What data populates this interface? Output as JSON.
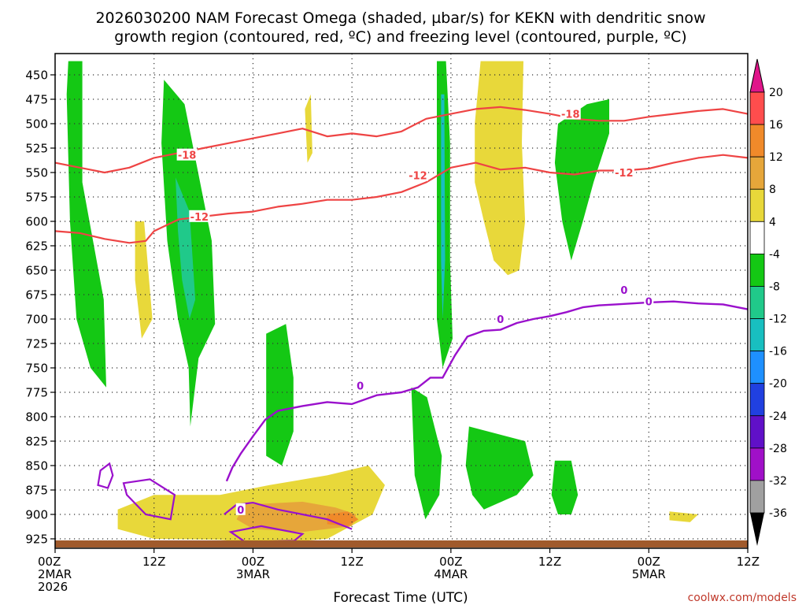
{
  "chart_data": {
    "type": "heatmap",
    "title_line1": "2026030200 NAM Forecast Omega (shaded, µbar/s) for KEKN with dendritic snow",
    "title_line2": "growth region (contoured, red, ºC) and freezing level (contoured, purple, ºC)",
    "xlabel": "Forecast Time (UTC)",
    "credit": "coolwx.com/models",
    "y_ticks": [
      "450",
      "475",
      "500",
      "525",
      "550",
      "575",
      "600",
      "625",
      "650",
      "675",
      "700",
      "725",
      "750",
      "775",
      "800",
      "825",
      "850",
      "875",
      "900",
      "925"
    ],
    "x_ticks": [
      {
        "hour": 0,
        "line1": "00Z",
        "line2": "2MAR",
        "line3": "2026"
      },
      {
        "hour": 12,
        "line1": "12Z",
        "line2": "",
        "line3": ""
      },
      {
        "hour": 24,
        "line1": "00Z",
        "line2": "3MAR",
        "line3": ""
      },
      {
        "hour": 36,
        "line1": "12Z",
        "line2": "",
        "line3": ""
      },
      {
        "hour": 48,
        "line1": "00Z",
        "line2": "4MAR",
        "line3": ""
      },
      {
        "hour": 60,
        "line1": "12Z",
        "line2": "",
        "line3": ""
      },
      {
        "hour": 72,
        "line1": "00Z",
        "line2": "5MAR",
        "line3": ""
      },
      {
        "hour": 84,
        "line1": "12Z",
        "line2": "",
        "line3": ""
      }
    ],
    "colorbar": {
      "labels": [
        "20",
        "16",
        "12",
        "8",
        "4",
        "-4",
        "-8",
        "-12",
        "-16",
        "-20",
        "-24",
        "-28",
        "-32",
        "-36"
      ],
      "colors": [
        "#ff4d4d",
        "#f08a2a",
        "#e6a63a",
        "#e8d83a",
        "#ffffff",
        "#14c814",
        "#20c98a",
        "#18bfc0",
        "#1e90ff",
        "#2040e0",
        "#6010c8",
        "#a010c8",
        "#a0a0a0"
      ],
      "top_arrow_color": "#e0158a",
      "bottom_arrow_color": "#000000"
    },
    "contour_labels": {
      "red": [
        "-18",
        "-12",
        "-12",
        "-18",
        "-12"
      ],
      "purple": [
        "0",
        "0",
        "0",
        "0",
        "0"
      ]
    },
    "shading_regions": [
      {
        "color": "#14c814",
        "polygon": [
          [
            1.6,
            436
          ],
          [
            3.3,
            436
          ],
          [
            3.3,
            560
          ],
          [
            5.9,
            680
          ],
          [
            6.2,
            770
          ],
          [
            4.3,
            750
          ],
          [
            2.6,
            700
          ],
          [
            1.8,
            600
          ],
          [
            1.4,
            470
          ]
        ]
      },
      {
        "color": "#14c814",
        "polygon": [
          [
            13.2,
            455
          ],
          [
            15.7,
            480
          ],
          [
            19,
            620
          ],
          [
            19.4,
            705
          ],
          [
            17.4,
            740
          ],
          [
            16.4,
            810
          ],
          [
            16.2,
            750
          ],
          [
            14.9,
            700
          ],
          [
            13.6,
            620
          ],
          [
            12.9,
            520
          ]
        ]
      },
      {
        "color": "#20c98a",
        "polygon": [
          [
            14.6,
            555
          ],
          [
            16.3,
            590
          ],
          [
            17,
            680
          ],
          [
            16.3,
            700
          ],
          [
            15.4,
            660
          ],
          [
            14.9,
            610
          ]
        ]
      },
      {
        "color": "#14c814",
        "polygon": [
          [
            25.6,
            715
          ],
          [
            28,
            705
          ],
          [
            28.9,
            760
          ],
          [
            28.9,
            815
          ],
          [
            27.5,
            850
          ],
          [
            25.6,
            840
          ],
          [
            25.6,
            790
          ]
        ]
      },
      {
        "color": "#14c814",
        "polygon": [
          [
            43.2,
            770
          ],
          [
            45.1,
            780
          ],
          [
            46.9,
            840
          ],
          [
            46.6,
            880
          ],
          [
            44.9,
            905
          ],
          [
            43.6,
            860
          ]
        ]
      },
      {
        "color": "#14c814",
        "polygon": [
          [
            46.3,
            436
          ],
          [
            47.4,
            436
          ],
          [
            47.9,
            520
          ],
          [
            47.9,
            640
          ],
          [
            48.2,
            720
          ],
          [
            47,
            750
          ],
          [
            46.3,
            700
          ],
          [
            46.3,
            600
          ]
        ]
      },
      {
        "color": "#18bfc0",
        "polygon": [
          [
            46.8,
            470
          ],
          [
            47.2,
            470
          ],
          [
            47.3,
            640
          ],
          [
            47,
            700
          ],
          [
            46.8,
            640
          ]
        ]
      },
      {
        "color": "#14c814",
        "polygon": [
          [
            50.2,
            810
          ],
          [
            57,
            825
          ],
          [
            58,
            860
          ],
          [
            56,
            880
          ],
          [
            52,
            895
          ],
          [
            50.6,
            880
          ],
          [
            49.8,
            850
          ]
        ]
      },
      {
        "color": "#14c814",
        "polygon": [
          [
            60.6,
            845
          ],
          [
            62.6,
            845
          ],
          [
            63.4,
            880
          ],
          [
            62.6,
            900
          ],
          [
            61,
            900
          ],
          [
            60.2,
            880
          ]
        ]
      },
      {
        "color": "#14c814",
        "polygon": [
          [
            61,
            500
          ],
          [
            64.5,
            480
          ],
          [
            67.2,
            475
          ],
          [
            67.2,
            510
          ],
          [
            65.3,
            560
          ],
          [
            64,
            600
          ],
          [
            62.6,
            640
          ],
          [
            61.5,
            600
          ],
          [
            60.6,
            540
          ]
        ]
      },
      {
        "color": "#e8d83a",
        "polygon": [
          [
            51.6,
            436
          ],
          [
            56.8,
            436
          ],
          [
            56.6,
            520
          ],
          [
            57,
            600
          ],
          [
            56.3,
            650
          ],
          [
            54.9,
            655
          ],
          [
            53.2,
            640
          ],
          [
            52,
            600
          ],
          [
            50.9,
            560
          ],
          [
            50.9,
            500
          ]
        ]
      },
      {
        "color": "#e8d83a",
        "polygon": [
          [
            9.7,
            600
          ],
          [
            10.8,
            600
          ],
          [
            11.4,
            660
          ],
          [
            11.8,
            700
          ],
          [
            10.5,
            720
          ],
          [
            9.7,
            660
          ]
        ]
      },
      {
        "color": "#e8d83a",
        "polygon": [
          [
            30.3,
            485
          ],
          [
            31,
            470
          ],
          [
            31.2,
            530
          ],
          [
            30.6,
            540
          ]
        ]
      },
      {
        "color": "#e8d83a",
        "polygon": [
          [
            7.6,
            895
          ],
          [
            12,
            880
          ],
          [
            20,
            880
          ],
          [
            26,
            870
          ],
          [
            33,
            860
          ],
          [
            38,
            850
          ],
          [
            40,
            870
          ],
          [
            38.5,
            900
          ],
          [
            33,
            925
          ],
          [
            26,
            930
          ],
          [
            20,
            926
          ],
          [
            12,
            925
          ],
          [
            7.6,
            915
          ]
        ]
      },
      {
        "color": "#e6a63a",
        "polygon": [
          [
            23,
            890
          ],
          [
            30,
            887
          ],
          [
            34,
            893
          ],
          [
            36.5,
            900
          ],
          [
            36,
            912
          ],
          [
            30,
            918
          ],
          [
            24,
            915
          ],
          [
            22,
            905
          ]
        ]
      },
      {
        "color": "#f08a2a",
        "polygon": [
          [
            33,
            900
          ],
          [
            35.5,
            897
          ],
          [
            36.8,
            905
          ],
          [
            35.5,
            912
          ],
          [
            33,
            910
          ]
        ]
      },
      {
        "color": "#e8d83a",
        "polygon": [
          [
            74.5,
            897
          ],
          [
            78,
            900
          ],
          [
            77,
            908
          ],
          [
            74.5,
            906
          ]
        ]
      }
    ],
    "red_isotherm_upper": [
      [
        0,
        540
      ],
      [
        3,
        545
      ],
      [
        6,
        550
      ],
      [
        9,
        545
      ],
      [
        12,
        535
      ],
      [
        15,
        530
      ],
      [
        18,
        525
      ],
      [
        21,
        520
      ],
      [
        24,
        515
      ],
      [
        27,
        510
      ],
      [
        30,
        505
      ],
      [
        33,
        513
      ],
      [
        36,
        510
      ],
      [
        39,
        513
      ],
      [
        42,
        508
      ],
      [
        45,
        495
      ],
      [
        48,
        490
      ],
      [
        51,
        485
      ],
      [
        54,
        483
      ],
      [
        57,
        486
      ],
      [
        60,
        490
      ],
      [
        63,
        495
      ],
      [
        66,
        497
      ],
      [
        69,
        497
      ],
      [
        72,
        493
      ],
      [
        75,
        490
      ],
      [
        78,
        487
      ],
      [
        81,
        485
      ],
      [
        84,
        490
      ]
    ],
    "red_isotherm_lower": [
      [
        0,
        610
      ],
      [
        3,
        612
      ],
      [
        6,
        618
      ],
      [
        9,
        622
      ],
      [
        11,
        620
      ],
      [
        12,
        610
      ],
      [
        15,
        598
      ],
      [
        18,
        595
      ],
      [
        21,
        592
      ],
      [
        24,
        590
      ],
      [
        27,
        585
      ],
      [
        30,
        582
      ],
      [
        33,
        578
      ],
      [
        36,
        578
      ],
      [
        39,
        575
      ],
      [
        42,
        570
      ],
      [
        45,
        560
      ],
      [
        48,
        545
      ],
      [
        51,
        540
      ],
      [
        54,
        547
      ],
      [
        57,
        545
      ],
      [
        60,
        550
      ],
      [
        63,
        552
      ],
      [
        66,
        548
      ],
      [
        69,
        548
      ],
      [
        72,
        546
      ],
      [
        75,
        540
      ],
      [
        78,
        535
      ],
      [
        81,
        532
      ],
      [
        84,
        535
      ]
    ],
    "purple_freezing_level": [
      [
        20.8,
        866
      ],
      [
        21.5,
        852
      ],
      [
        22.5,
        838
      ],
      [
        24,
        820
      ],
      [
        25.5,
        803
      ],
      [
        27,
        794
      ],
      [
        30,
        789
      ],
      [
        33,
        785
      ],
      [
        36,
        787
      ],
      [
        39,
        778
      ],
      [
        42,
        775
      ],
      [
        44,
        770
      ],
      [
        45.5,
        760
      ],
      [
        47,
        760
      ],
      [
        48.5,
        737
      ],
      [
        50,
        718
      ],
      [
        52,
        712
      ],
      [
        54,
        711
      ],
      [
        56,
        704
      ],
      [
        58,
        700
      ],
      [
        60,
        697
      ],
      [
        62,
        693
      ],
      [
        64,
        688
      ],
      [
        66,
        686
      ],
      [
        68,
        685
      ],
      [
        70,
        684
      ],
      [
        72,
        683
      ],
      [
        75,
        682
      ],
      [
        78,
        684
      ],
      [
        81,
        685
      ],
      [
        84,
        690
      ]
    ]
  }
}
